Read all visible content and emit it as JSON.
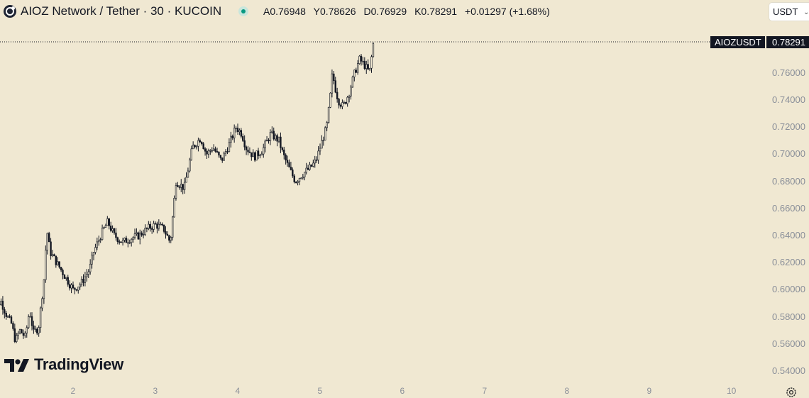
{
  "header": {
    "symbol_title": "AIOZ Network / Tether · 30 · KUCOIN",
    "ohlc": [
      {
        "label": "A",
        "value": "0.76948"
      },
      {
        "label": "Y",
        "value": "0.78626"
      },
      {
        "label": "D",
        "value": "0.76929"
      },
      {
        "label": "K",
        "value": "0.78291"
      },
      {
        "label": "",
        "value": "+0.01297 (+1.68%)"
      }
    ],
    "currency": "USDT",
    "status_color": "#089981"
  },
  "price_tag": {
    "symbol": "AIOZUSDT",
    "value": "0.78291"
  },
  "brand": {
    "name": "TradingView"
  },
  "icons": {
    "logo": "aioz-logo-icon",
    "chevron": "chevron-down-icon",
    "settings": "gear-icon"
  },
  "colors": {
    "background": "#f0e8d2",
    "candles": "#131722",
    "axis_text": "#8a8f99",
    "price_line": "#131722"
  },
  "chart_data": {
    "type": "candlestick",
    "symbol": "AIOZUSDT",
    "exchange": "KUCOIN",
    "interval": "30",
    "last_price": 0.78291,
    "ylim": [
      0.532,
      0.8
    ],
    "y_ticks": [
      "0.76000",
      "0.74000",
      "0.72000",
      "0.70000",
      "0.68000",
      "0.66000",
      "0.64000",
      "0.62000",
      "0.60000",
      "0.58000",
      "0.56000",
      "0.54000"
    ],
    "x_ticks": [
      "2",
      "3",
      "4",
      "5",
      "6",
      "7",
      "8",
      "9",
      "10"
    ],
    "x_range": [
      1.0,
      10.5
    ],
    "close_path": [
      [
        1.0,
        0.61
      ],
      [
        1.05,
        0.585
      ],
      [
        1.12,
        0.592
      ],
      [
        1.2,
        0.58
      ],
      [
        1.25,
        0.575
      ],
      [
        1.3,
        0.562
      ],
      [
        1.35,
        0.57
      ],
      [
        1.42,
        0.565
      ],
      [
        1.47,
        0.585
      ],
      [
        1.52,
        0.568
      ],
      [
        1.58,
        0.572
      ],
      [
        1.65,
        0.61
      ],
      [
        1.68,
        0.645
      ],
      [
        1.72,
        0.628
      ],
      [
        1.8,
        0.62
      ],
      [
        1.9,
        0.61
      ],
      [
        2.0,
        0.6
      ],
      [
        2.1,
        0.605
      ],
      [
        2.2,
        0.615
      ],
      [
        2.25,
        0.628
      ],
      [
        2.35,
        0.642
      ],
      [
        2.42,
        0.65
      ],
      [
        2.5,
        0.64
      ],
      [
        2.6,
        0.635
      ],
      [
        2.7,
        0.638
      ],
      [
        2.8,
        0.64
      ],
      [
        2.9,
        0.645
      ],
      [
        3.0,
        0.648
      ],
      [
        3.1,
        0.645
      ],
      [
        3.18,
        0.635
      ],
      [
        3.25,
        0.68
      ],
      [
        3.35,
        0.675
      ],
      [
        3.45,
        0.705
      ],
      [
        3.55,
        0.712
      ],
      [
        3.62,
        0.7
      ],
      [
        3.7,
        0.705
      ],
      [
        3.8,
        0.695
      ],
      [
        3.9,
        0.708
      ],
      [
        3.98,
        0.72
      ],
      [
        4.05,
        0.715
      ],
      [
        4.1,
        0.705
      ],
      [
        4.2,
        0.698
      ],
      [
        4.3,
        0.703
      ],
      [
        4.4,
        0.715
      ],
      [
        4.5,
        0.71
      ],
      [
        4.55,
        0.7
      ],
      [
        4.62,
        0.69
      ],
      [
        4.7,
        0.68
      ],
      [
        4.78,
        0.685
      ],
      [
        4.88,
        0.69
      ],
      [
        4.95,
        0.695
      ],
      [
        5.0,
        0.705
      ],
      [
        5.08,
        0.72
      ],
      [
        5.12,
        0.74
      ],
      [
        5.15,
        0.76
      ],
      [
        5.18,
        0.75
      ],
      [
        5.22,
        0.74
      ],
      [
        5.28,
        0.735
      ],
      [
        5.35,
        0.745
      ],
      [
        5.42,
        0.76
      ],
      [
        5.48,
        0.77
      ],
      [
        5.55,
        0.765
      ],
      [
        5.6,
        0.76
      ],
      [
        5.65,
        0.783
      ]
    ]
  }
}
